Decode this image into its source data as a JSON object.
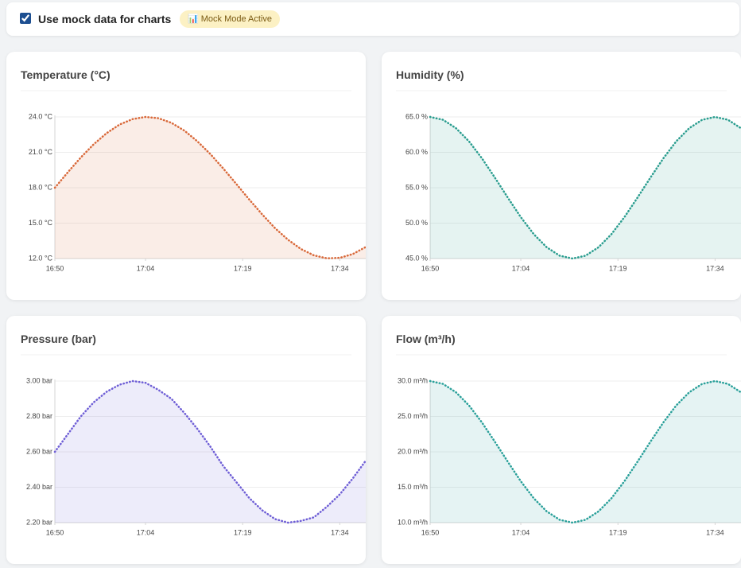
{
  "controls": {
    "checkbox": {
      "label": "Use mock data for charts",
      "checked": true
    },
    "badge": "📊 Mock Mode Active"
  },
  "chart_data": [
    {
      "type": "area",
      "title": "Temperature (°C)",
      "color": "#d9693a",
      "x": [
        "16:50",
        "16:52",
        "16:54",
        "16:56",
        "16:58",
        "17:00",
        "17:02",
        "17:04",
        "17:06",
        "17:08",
        "17:10",
        "17:12",
        "17:14",
        "17:16",
        "17:18",
        "17:20",
        "17:22",
        "17:24",
        "17:26",
        "17:28",
        "17:30",
        "17:32",
        "17:34",
        "17:36",
        "17:38"
      ],
      "values": [
        18.0,
        19.31,
        20.56,
        21.69,
        22.63,
        23.36,
        23.82,
        24.0,
        23.89,
        23.5,
        22.84,
        21.94,
        20.86,
        19.63,
        18.33,
        17.01,
        15.75,
        14.57,
        13.59,
        12.81,
        12.27,
        12.02,
        12.06,
        12.38,
        12.98
      ],
      "xlim": [
        "16:50",
        "17:38"
      ],
      "xticks": [
        "16:50",
        "17:04",
        "17:19",
        "17:34"
      ],
      "ylim": [
        12,
        24
      ],
      "yticks": [
        {
          "value": 12,
          "label": "12.0 °C"
        },
        {
          "value": 15,
          "label": "15.0 °C"
        },
        {
          "value": 18,
          "label": "18.0 °C"
        },
        {
          "value": 21,
          "label": "21.0 °C"
        },
        {
          "value": 24,
          "label": "24.0 °C"
        }
      ],
      "grid": true
    },
    {
      "type": "area",
      "title": "Humidity (%)",
      "color": "#2a9d8f",
      "x": [
        "16:50",
        "16:52",
        "16:54",
        "16:56",
        "16:58",
        "17:00",
        "17:02",
        "17:04",
        "17:06",
        "17:08",
        "17:10",
        "17:12",
        "17:14",
        "17:16",
        "17:18",
        "17:20",
        "17:22",
        "17:24",
        "17:26",
        "17:28",
        "17:30",
        "17:32",
        "17:34",
        "17:36",
        "17:38"
      ],
      "values": [
        65.0,
        64.59,
        63.41,
        61.55,
        59.15,
        56.42,
        53.58,
        50.85,
        48.45,
        46.59,
        45.41,
        45.0,
        45.41,
        46.59,
        48.45,
        50.85,
        53.58,
        56.42,
        59.15,
        61.55,
        63.41,
        64.59,
        65.0,
        64.59,
        63.41
      ],
      "xlim": [
        "16:50",
        "17:38"
      ],
      "xticks": [
        "16:50",
        "17:04",
        "17:19",
        "17:34"
      ],
      "ylim": [
        45,
        65
      ],
      "yticks": [
        {
          "value": 45,
          "label": "45.0 %"
        },
        {
          "value": 50,
          "label": "50.0 %"
        },
        {
          "value": 55,
          "label": "55.0 %"
        },
        {
          "value": 60,
          "label": "60.0 %"
        },
        {
          "value": 65,
          "label": "65.0 %"
        }
      ],
      "grid": true
    },
    {
      "type": "area",
      "title": "Pressure (bar)",
      "color": "#6f5fd6",
      "x": [
        "16:50",
        "16:52",
        "16:54",
        "16:56",
        "16:58",
        "17:00",
        "17:02",
        "17:04",
        "17:06",
        "17:08",
        "17:10",
        "17:12",
        "17:14",
        "17:16",
        "17:18",
        "17:20",
        "17:22",
        "17:24",
        "17:26",
        "17:28",
        "17:30",
        "17:32",
        "17:34",
        "17:36",
        "17:38"
      ],
      "values": [
        2.6,
        2.7,
        2.8,
        2.88,
        2.94,
        2.98,
        3.0,
        2.99,
        2.95,
        2.9,
        2.82,
        2.73,
        2.63,
        2.52,
        2.43,
        2.34,
        2.27,
        2.22,
        2.2,
        2.21,
        2.23,
        2.29,
        2.36,
        2.45,
        2.55
      ],
      "xlim": [
        "16:50",
        "17:38"
      ],
      "xticks": [
        "16:50",
        "17:04",
        "17:19",
        "17:34"
      ],
      "ylim": [
        2.2,
        3.0
      ],
      "yticks": [
        {
          "value": 2.2,
          "label": "2.20 bar"
        },
        {
          "value": 2.4,
          "label": "2.40 bar"
        },
        {
          "value": 2.6,
          "label": "2.60 bar"
        },
        {
          "value": 2.8,
          "label": "2.80 bar"
        },
        {
          "value": 3.0,
          "label": "3.00 bar"
        }
      ],
      "grid": true
    },
    {
      "type": "area",
      "title": "Flow (m³/h)",
      "color": "#2aa09a",
      "x": [
        "16:50",
        "16:52",
        "16:54",
        "16:56",
        "16:58",
        "17:00",
        "17:02",
        "17:04",
        "17:06",
        "17:08",
        "17:10",
        "17:12",
        "17:14",
        "17:16",
        "17:18",
        "17:20",
        "17:22",
        "17:24",
        "17:26",
        "17:28",
        "17:30",
        "17:32",
        "17:34",
        "17:36",
        "17:38"
      ],
      "values": [
        30.0,
        29.6,
        28.41,
        26.55,
        24.15,
        21.42,
        18.58,
        15.85,
        13.45,
        11.59,
        10.41,
        10.0,
        10.41,
        11.59,
        13.45,
        15.85,
        18.58,
        21.42,
        24.15,
        26.55,
        28.41,
        29.6,
        30.0,
        29.6,
        28.41
      ],
      "xlim": [
        "16:50",
        "17:38"
      ],
      "xticks": [
        "16:50",
        "17:04",
        "17:19",
        "17:34"
      ],
      "ylim": [
        10,
        30
      ],
      "yticks": [
        {
          "value": 10,
          "label": "10.0 m³/h"
        },
        {
          "value": 15,
          "label": "15.0 m³/h"
        },
        {
          "value": 20,
          "label": "20.0 m³/h"
        },
        {
          "value": 25,
          "label": "25.0 m³/h"
        },
        {
          "value": 30,
          "label": "30.0 m³/h"
        }
      ],
      "grid": true
    }
  ]
}
